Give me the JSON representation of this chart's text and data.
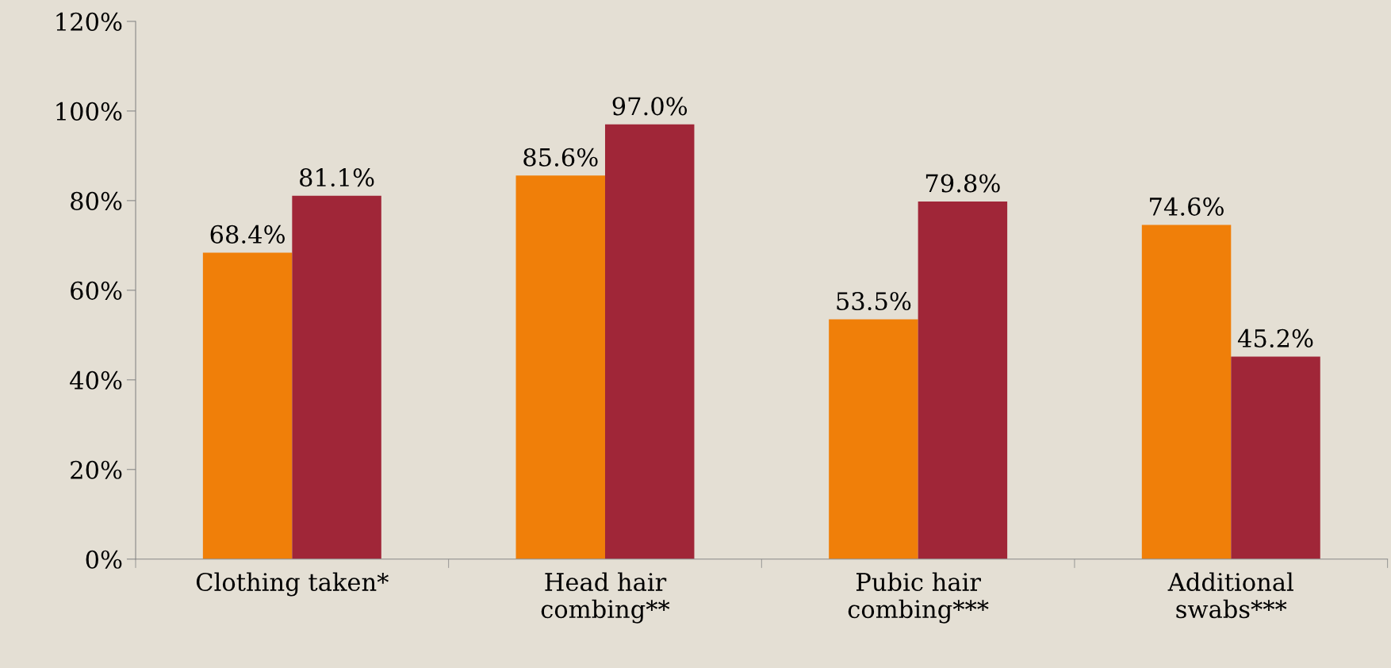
{
  "chart_data": {
    "type": "bar",
    "categories": [
      "Clothing taken*",
      "Head hair\ncombing**",
      "Pubic hair\ncombing***",
      "Additional\nswabs***"
    ],
    "series": [
      {
        "color": "#f07f09",
        "values": [
          68.4,
          85.6,
          53.5,
          74.6
        ],
        "value_labels": [
          "68.4%",
          "85.6%",
          "53.5%",
          "74.6%"
        ]
      },
      {
        "color": "#a02638",
        "values": [
          81.1,
          97.0,
          79.8,
          45.2
        ],
        "value_labels": [
          "81.1%",
          "97.0%",
          "79.8%",
          "45.2%"
        ]
      }
    ],
    "ylim": [
      0,
      120
    ],
    "yticks": [
      {
        "value": 0,
        "label": "0%"
      },
      {
        "value": 20,
        "label": "20%"
      },
      {
        "value": 40,
        "label": "40%"
      },
      {
        "value": 60,
        "label": "60%"
      },
      {
        "value": 80,
        "label": "80%"
      },
      {
        "value": 100,
        "label": "100%"
      },
      {
        "value": 120,
        "label": "120%"
      }
    ],
    "grid": false,
    "legend": false
  }
}
